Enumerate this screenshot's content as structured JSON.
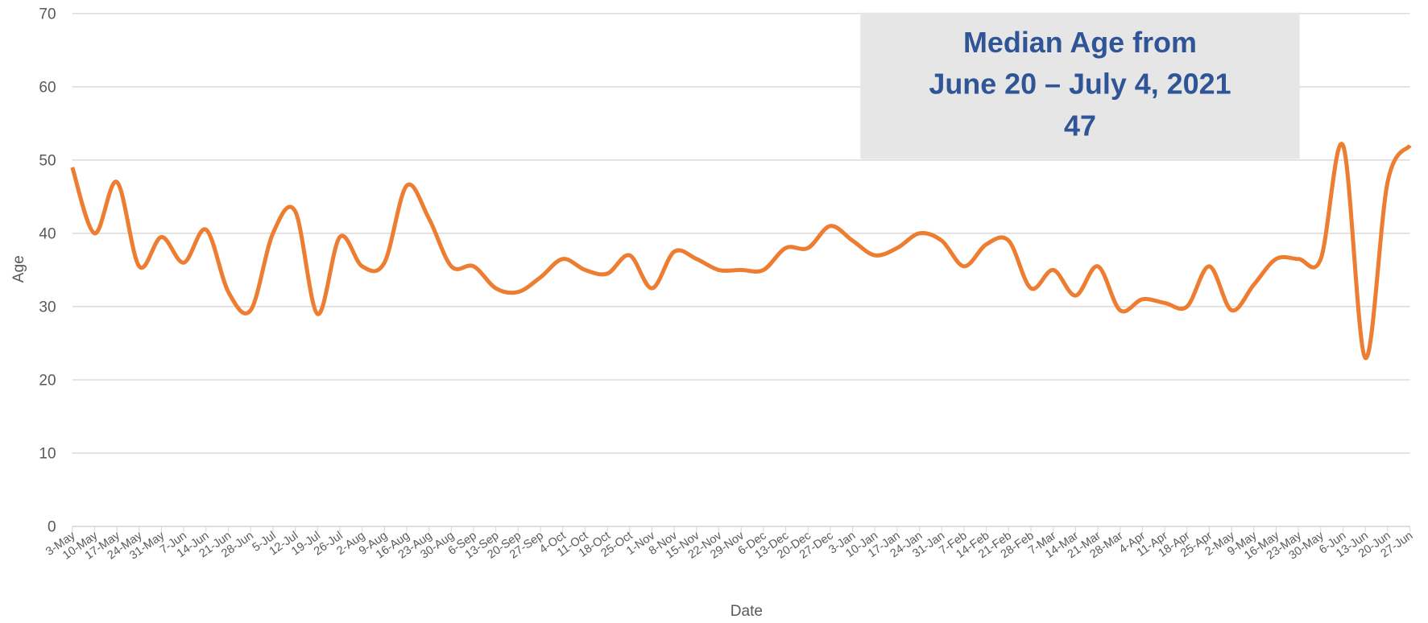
{
  "chart_data": {
    "type": "line",
    "x_label": "Date",
    "y_label": "Age",
    "annotation": [
      "Median Age from",
      "June 20 – July 4, 2021",
      "47"
    ],
    "categories": [
      "3-May",
      "10-May",
      "17-May",
      "24-May",
      "31-May",
      "7-Jun",
      "14-Jun",
      "21-Jun",
      "28-Jun",
      "5-Jul",
      "12-Jul",
      "19-Jul",
      "26-Jul",
      "2-Aug",
      "9-Aug",
      "16-Aug",
      "23-Aug",
      "30-Aug",
      "6-Sep",
      "13-Sep",
      "20-Sep",
      "27-Sep",
      "4-Oct",
      "11-Oct",
      "18-Oct",
      "25-Oct",
      "1-Nov",
      "8-Nov",
      "15-Nov",
      "22-Nov",
      "29-Nov",
      "6-Dec",
      "13-Dec",
      "20-Dec",
      "27-Dec",
      "3-Jan",
      "10-Jan",
      "17-Jan",
      "24-Jan",
      "31-Jan",
      "7-Feb",
      "14-Feb",
      "21-Feb",
      "28-Feb",
      "7-Mar",
      "14-Mar",
      "21-Mar",
      "28-Mar",
      "4-Apr",
      "11-Apr",
      "18-Apr",
      "25-Apr",
      "2-May",
      "9-May",
      "16-May",
      "23-May",
      "30-May",
      "6-Jun",
      "13-Jun",
      "20-Jun",
      "27-Jun"
    ],
    "values": [
      49,
      40,
      47,
      35.5,
      39.5,
      36,
      40.5,
      32,
      29.5,
      40,
      43,
      29,
      39.5,
      35.5,
      36,
      46.5,
      42,
      35.5,
      35.5,
      32.5,
      32,
      34,
      36.5,
      35,
      34.5,
      37,
      32.5,
      37.5,
      36.5,
      35,
      35,
      35,
      38,
      38,
      41,
      39,
      37,
      38,
      40,
      39,
      35.5,
      38.5,
      39,
      32.5,
      35,
      31.5,
      35.5,
      29.5,
      31,
      30.5,
      30,
      35.5,
      29.5,
      33,
      36.5,
      36.5,
      36.5,
      52,
      23,
      47,
      52
    ],
    "color": "#ed7d31",
    "ylim": [
      0,
      70
    ],
    "yticks": [
      0,
      10,
      20,
      30,
      40,
      50,
      60,
      70
    ],
    "grid": true
  }
}
